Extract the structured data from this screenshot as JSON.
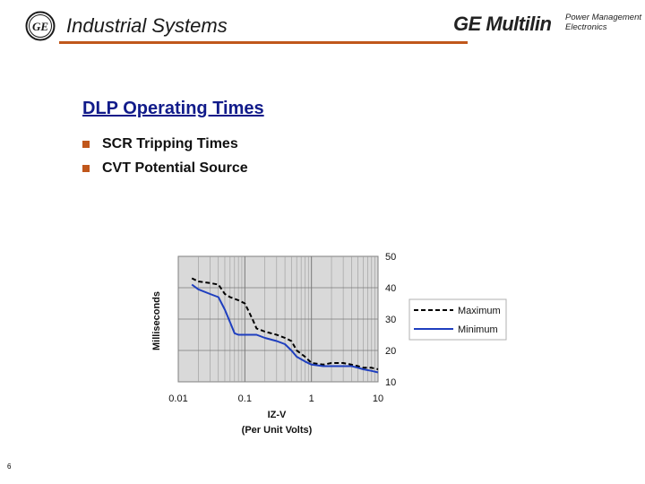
{
  "header": {
    "title": "Industrial Systems",
    "brand": "GE Multilin",
    "brand_sub_line1": "Power Management",
    "brand_sub_line2": "Electronics",
    "logo_icon": "ge-monogram-icon",
    "accent_color": "#c0571b"
  },
  "slide": {
    "title": "DLP Operating Times",
    "title_color": "#111b8a",
    "bullets": [
      {
        "text": "SCR Tripping Times"
      },
      {
        "text": "CVT Potential Source"
      }
    ],
    "page_number": "6"
  },
  "chart_data": {
    "type": "line",
    "xscale": "log",
    "xlim": [
      0.01,
      10
    ],
    "ylim": [
      10,
      50
    ],
    "xlabel": "IZ-V",
    "xlabel2": "(Per Unit Volts)",
    "ylabel": "Milliseconds",
    "xticks": [
      "0.01",
      "0.1",
      "1",
      "10"
    ],
    "yticks": [
      "10",
      "20",
      "30",
      "40",
      "50"
    ],
    "grid": true,
    "legend_position": "right",
    "series": [
      {
        "name": "Maximum",
        "style": "dashed",
        "color": "#000000",
        "x": [
          0.016,
          0.02,
          0.03,
          0.04,
          0.05,
          0.06,
          0.08,
          0.1,
          0.13,
          0.15,
          0.2,
          0.3,
          0.4,
          0.5,
          0.6,
          0.8,
          1,
          1.5,
          2,
          3,
          4,
          5,
          6,
          8,
          10
        ],
        "y": [
          43,
          42,
          41.5,
          41,
          38,
          37,
          36,
          35,
          30,
          27,
          26,
          25,
          24,
          23,
          20,
          18,
          16,
          15.5,
          16,
          16,
          15.5,
          15,
          14.5,
          14.5,
          14
        ]
      },
      {
        "name": "Minimum",
        "style": "solid",
        "color": "#1f3fbf",
        "x": [
          0.016,
          0.02,
          0.03,
          0.04,
          0.05,
          0.06,
          0.07,
          0.08,
          0.1,
          0.15,
          0.2,
          0.3,
          0.4,
          0.5,
          0.6,
          0.8,
          1,
          1.5,
          2,
          3,
          4,
          5,
          6,
          8,
          10
        ],
        "y": [
          41,
          39.5,
          38,
          37,
          33,
          29,
          25.5,
          25,
          25,
          25,
          24,
          23,
          22,
          20,
          18,
          16.5,
          15.5,
          15,
          15,
          15,
          15,
          14.5,
          14,
          13.5,
          13
        ]
      }
    ]
  }
}
